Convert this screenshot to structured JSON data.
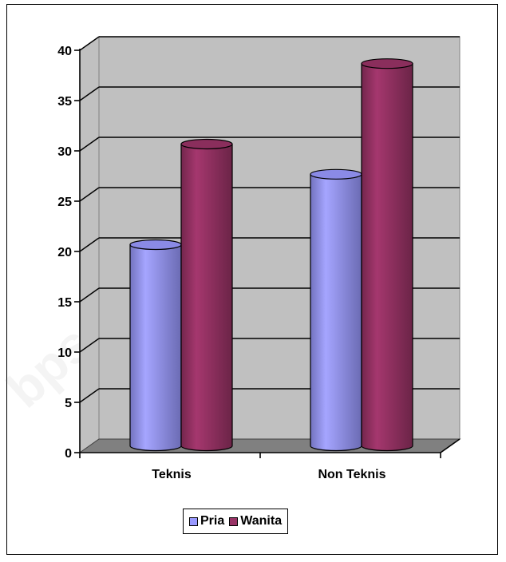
{
  "chart_data": {
    "type": "bar",
    "style": "3d-cylinder",
    "categories": [
      "Teknis",
      "Non Teknis"
    ],
    "series": [
      {
        "name": "Pria",
        "values": [
          20,
          27
        ],
        "color": "#9999ff"
      },
      {
        "name": "Wanita",
        "values": [
          30,
          38
        ],
        "color": "#993366"
      }
    ],
    "ylim": [
      0,
      40
    ],
    "yticks": [
      "0",
      "5",
      "10",
      "15",
      "20",
      "25",
      "30",
      "35",
      "40"
    ],
    "grid": true,
    "wall_color": "#c0c0c0",
    "floor_color": "#808080",
    "legend_position": "bottom"
  },
  "watermark": "bps.go.id"
}
